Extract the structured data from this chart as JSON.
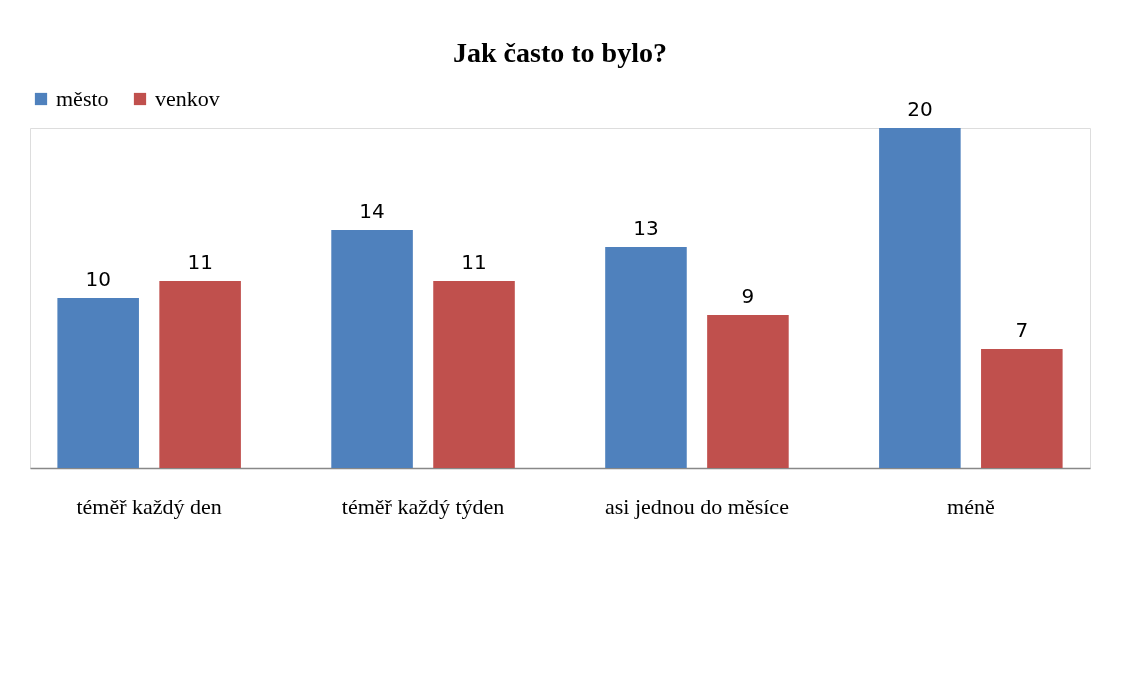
{
  "chart_data": {
    "type": "bar",
    "title": "Jak často to bylo?",
    "categories": [
      "téměř každý den",
      "téměř každý týden",
      "asi jednou do měsíce",
      "méně"
    ],
    "series": [
      {
        "name": "město",
        "color": "#4f81bd",
        "values": [
          10,
          14,
          13,
          20
        ]
      },
      {
        "name": "venkov",
        "color": "#c0504d",
        "values": [
          11,
          11,
          9,
          7
        ]
      }
    ],
    "data_labels": true,
    "legend": "top",
    "grid": false
  }
}
